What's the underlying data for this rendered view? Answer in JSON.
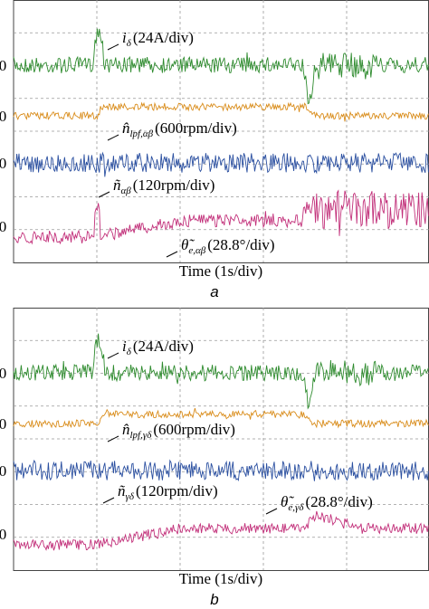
{
  "panels": [
    {
      "caption": "a",
      "x_label": "Time (1s/div)",
      "traces": [
        {
          "marker": "0",
          "symbol": "i",
          "subscript": "δ",
          "scale": "(24A/div)",
          "color": "#2e8b2e"
        },
        {
          "marker": "0",
          "symbol": "n̂",
          "subscript": "lpf,αβ",
          "scale": "(600rpm/div)",
          "color": "#d98c1a"
        },
        {
          "marker": "0",
          "symbol": "ñ",
          "subscript": "αβ",
          "scale": "(120rpm/div)",
          "color": "#2a4fa0"
        },
        {
          "marker": "0",
          "symbol": "θ̃",
          "subscript": "e,αβ",
          "scale": "(28.8°/div)",
          "color": "#c2307a"
        }
      ]
    },
    {
      "caption": "b",
      "x_label": "Time (1s/div)",
      "traces": [
        {
          "marker": "0",
          "symbol": "i",
          "subscript": "δ",
          "scale": "(24A/div)",
          "color": "#2e8b2e"
        },
        {
          "marker": "0",
          "symbol": "n̂",
          "subscript": "lpf,γδ",
          "scale": "(600rpm/div)",
          "color": "#d98c1a"
        },
        {
          "marker": "0",
          "symbol": "ñ",
          "subscript": "γδ",
          "scale": "(120rpm/div)",
          "color": "#2a4fa0"
        },
        {
          "marker": "0",
          "symbol": "θ̃",
          "subscript": "e,γδ",
          "scale": "(28.8°/div)",
          "color": "#c2307a"
        }
      ]
    }
  ]
}
